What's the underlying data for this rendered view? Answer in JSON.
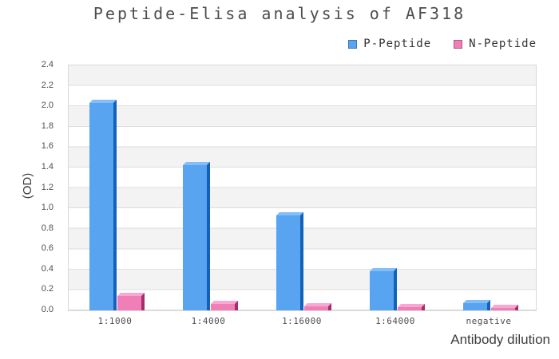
{
  "chart_data": {
    "type": "bar",
    "title": "Peptide-Elisa analysis of AF318",
    "categories": [
      "1:1000",
      "1:4000",
      "1:16000",
      "1:64000",
      "negative"
    ],
    "series": [
      {
        "name": "P-Peptide",
        "values": [
          2.03,
          1.42,
          0.93,
          0.38,
          0.07
        ],
        "colors": {
          "front": "#58a4f0",
          "top": "#82bef8",
          "side": "#1262bc"
        }
      },
      {
        "name": "N-Peptide",
        "values": [
          0.14,
          0.06,
          0.04,
          0.03,
          0.02
        ],
        "colors": {
          "front": "#f07fb7",
          "top": "#f9a8d2",
          "side": "#a62c6d"
        }
      }
    ],
    "xlabel": "Antibody dilution",
    "ylabel": "(OD)",
    "ylim": [
      0,
      2.4
    ],
    "ytick_step": 0.2,
    "yticks": [
      "0.0",
      "0.2",
      "0.4",
      "0.6",
      "0.8",
      "1.0",
      "1.2",
      "1.4",
      "1.6",
      "1.8",
      "2.0",
      "2.2",
      "2.4"
    ],
    "grid": "horizontal-bands",
    "legend_position": "top-right",
    "bar_style": "3d"
  },
  "colors": {
    "band_gray": "#f3f3f3",
    "gridline": "#dedede",
    "plot_border": "#d8d8d8",
    "background": "#ffffff"
  }
}
